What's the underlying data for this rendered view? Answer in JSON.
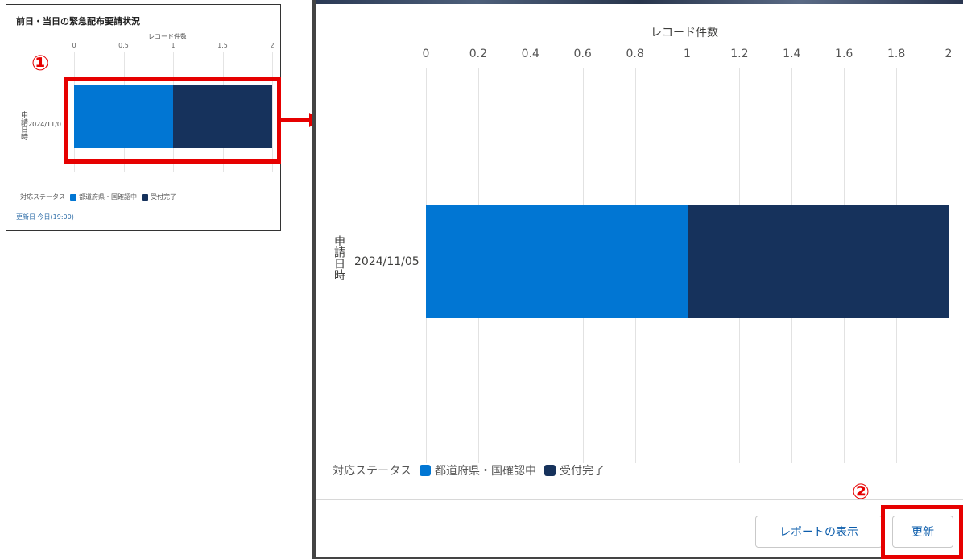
{
  "small_card": {
    "title": "前日・当日の緊急配布要請状況",
    "updated": "更新日 今日(19:00)"
  },
  "annotations": {
    "marker1": "①",
    "marker2": "②"
  },
  "footer": {
    "report_button": "レポートの表示",
    "refresh_button": "更新"
  },
  "colors": {
    "series1": "#0176d3",
    "series2": "#16325c",
    "annotation": "#e60000"
  },
  "chart_data": {
    "type": "bar",
    "orientation": "horizontal",
    "stacked": true,
    "xlabel": "レコード件数",
    "ylabel": "申請日時",
    "categories": [
      "2024/11/05"
    ],
    "series": [
      {
        "name": "都道府県・国確認中",
        "values": [
          1
        ]
      },
      {
        "name": "受付完了",
        "values": [
          1
        ]
      }
    ],
    "xlim": [
      0,
      2
    ],
    "big_ticks": [
      "0",
      "0.2",
      "0.4",
      "0.6",
      "0.8",
      "1",
      "1.2",
      "1.4",
      "1.6",
      "1.8",
      "2"
    ],
    "small_ticks": [
      "0",
      "0.5",
      "1",
      "1.5",
      "2"
    ],
    "small_category_label": "2024/11/0",
    "legend_title": "対応ステータス",
    "legend_position": "bottom-left",
    "grid": true
  }
}
